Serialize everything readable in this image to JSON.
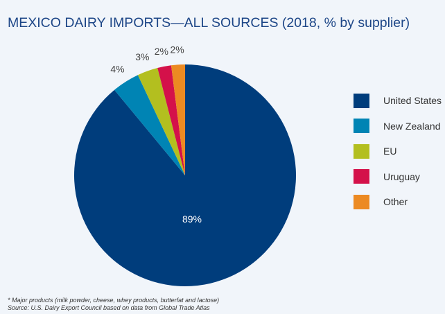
{
  "chart_data": {
    "type": "pie",
    "title": "MEXICO DAIRY IMPORTS—ALL SOURCES (2018, % by supplier)",
    "categories": [
      "United States",
      "New Zealand",
      "EU",
      "Uruguay",
      "Other"
    ],
    "values": [
      89,
      4,
      3,
      2,
      2
    ],
    "labels": [
      "89%",
      "4%",
      "3%",
      "2%",
      "2%"
    ],
    "colors": [
      "#003d7c",
      "#0084b4",
      "#b3bf1f",
      "#d4114a",
      "#ec8a22"
    ],
    "legend_placement": "right",
    "start": "top, clockwise"
  },
  "footnotes": {
    "note": "* Major products (milk powder, cheese, whey products, butterfat and lactose)",
    "source": "Source: U.S. Dairy Export Council based on data from Global Trade Atlas"
  }
}
